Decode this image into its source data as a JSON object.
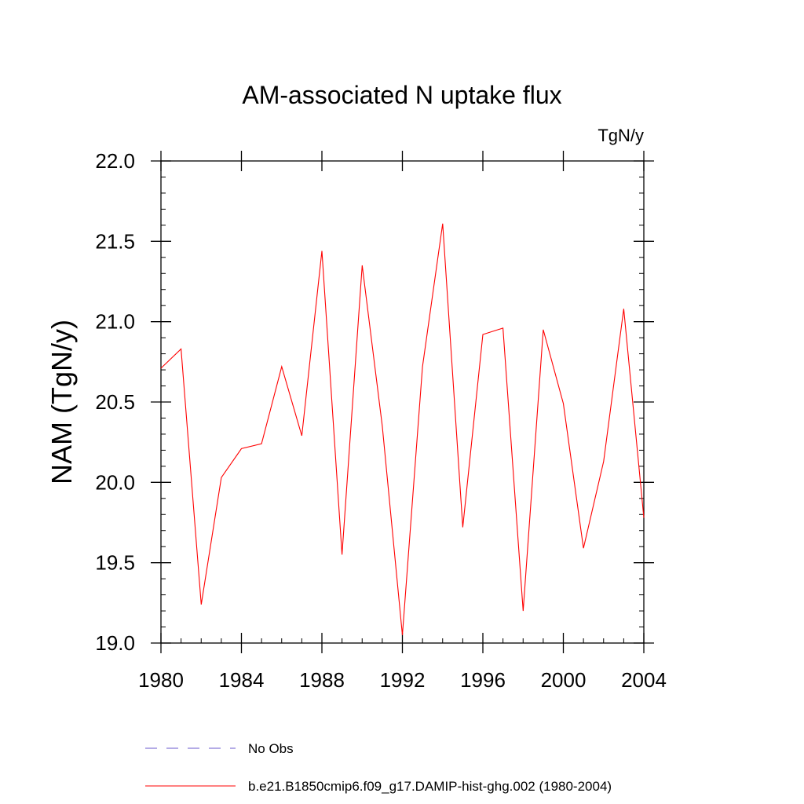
{
  "chart_data": {
    "type": "line",
    "title": "AM-associated N uptake flux",
    "units_label": "TgN/y",
    "ylabel": "NAM  (TgN/y)",
    "xlabel": "",
    "xlim": [
      1980,
      2004
    ],
    "ylim": [
      19.0,
      22.0
    ],
    "x_ticks": [
      1980,
      1984,
      1988,
      1992,
      1996,
      2000,
      2004
    ],
    "y_ticks": [
      "19.0",
      "19.5",
      "20.0",
      "20.5",
      "21.0",
      "21.5",
      "22.0"
    ],
    "grid": false,
    "legend_position": "bottom",
    "x": [
      1980,
      1981,
      1982,
      1983,
      1984,
      1985,
      1986,
      1987,
      1988,
      1989,
      1990,
      1991,
      1992,
      1993,
      1994,
      1995,
      1996,
      1997,
      1998,
      1999,
      2000,
      2001,
      2002,
      2003,
      2004
    ],
    "series": [
      {
        "name": "b.e21.B1850cmip6.f09_g17.DAMIP-hist-ghg.002 (1980-2004)",
        "color": "#ff0000",
        "style": "solid",
        "values": [
          20.71,
          20.83,
          19.24,
          20.03,
          20.21,
          20.24,
          20.72,
          20.29,
          21.44,
          19.55,
          21.35,
          20.35,
          19.05,
          20.72,
          21.61,
          19.72,
          20.92,
          20.96,
          19.2,
          20.95,
          20.49,
          19.59,
          20.13,
          21.08,
          19.78
        ]
      }
    ],
    "legend": [
      {
        "label": "No Obs",
        "color": "#6a5acd",
        "style": "dashed"
      },
      {
        "label": "b.e21.B1850cmip6.f09_g17.DAMIP-hist-ghg.002 (1980-2004)",
        "color": "#ff0000",
        "style": "solid"
      }
    ]
  }
}
